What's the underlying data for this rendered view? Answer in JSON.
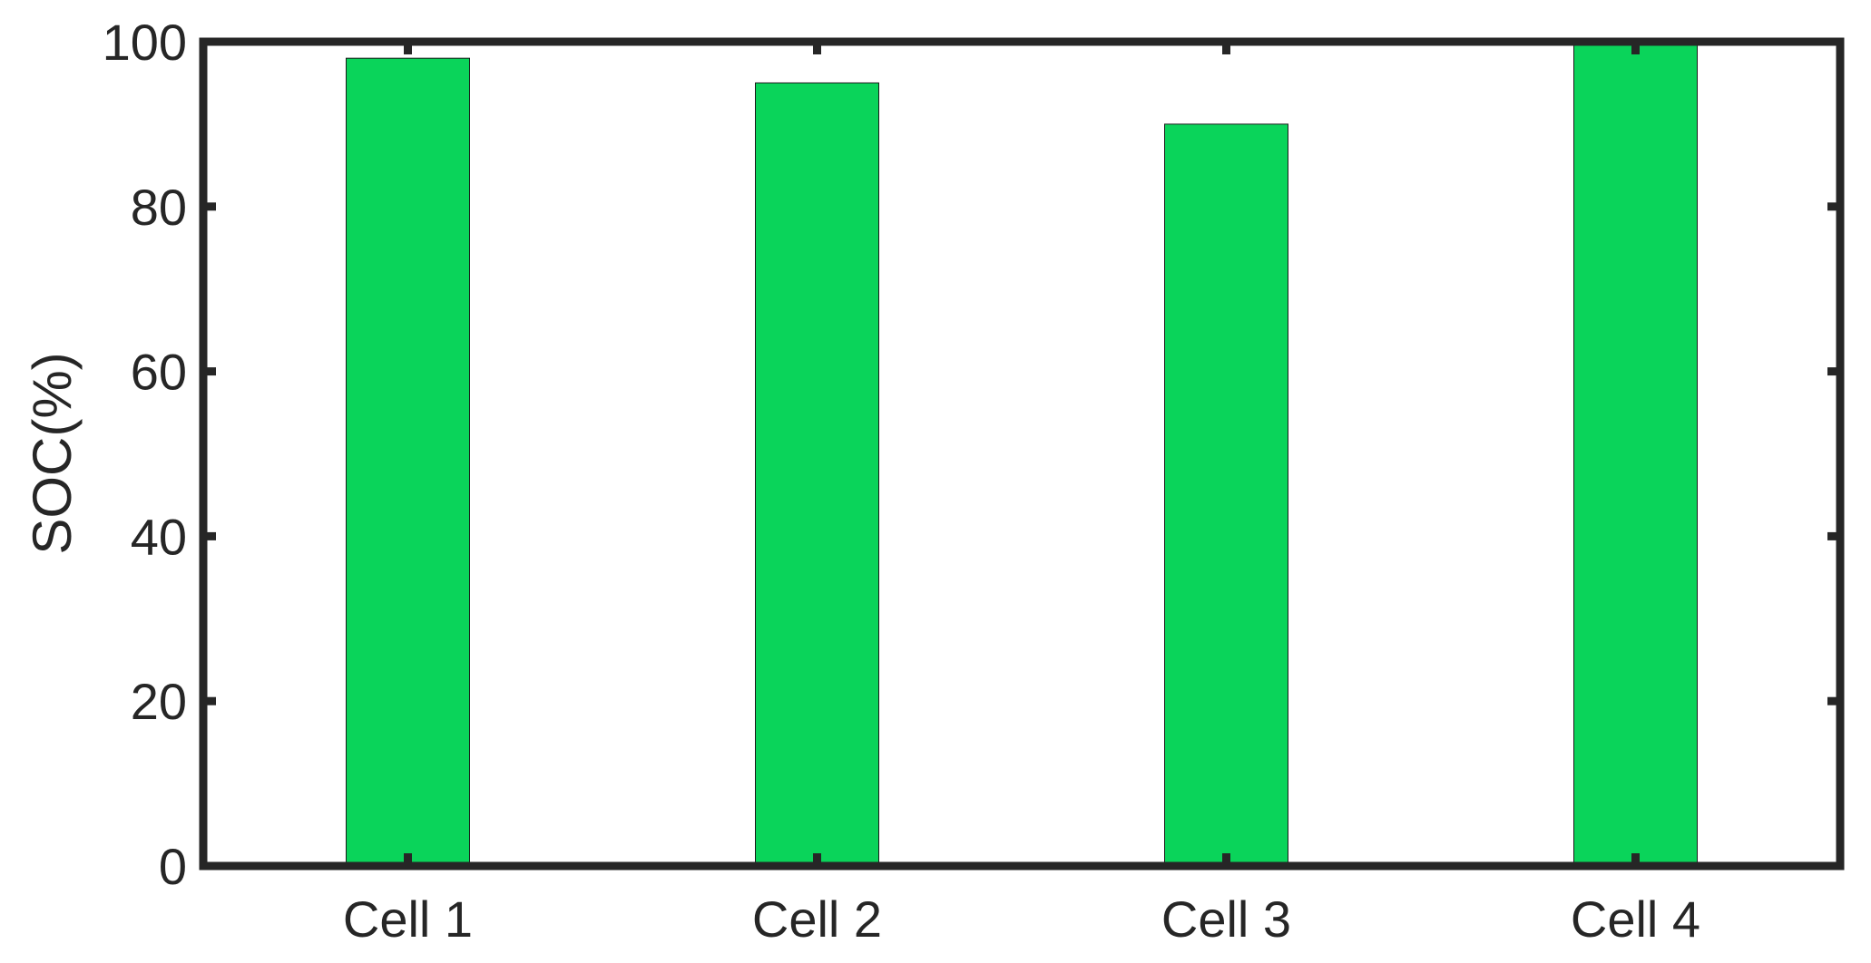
{
  "chart_data": {
    "type": "bar",
    "categories": [
      "Cell 1",
      "Cell 2",
      "Cell 3",
      "Cell 4"
    ],
    "values": [
      98,
      95,
      90,
      100
    ],
    "xlabel": "",
    "ylabel": "SOC(%)",
    "ylim": [
      0,
      100
    ],
    "yticks": [
      0,
      20,
      40,
      60,
      80,
      100
    ],
    "grid": false,
    "bar_color": "#0ad45a",
    "axis_color": "#262626"
  }
}
